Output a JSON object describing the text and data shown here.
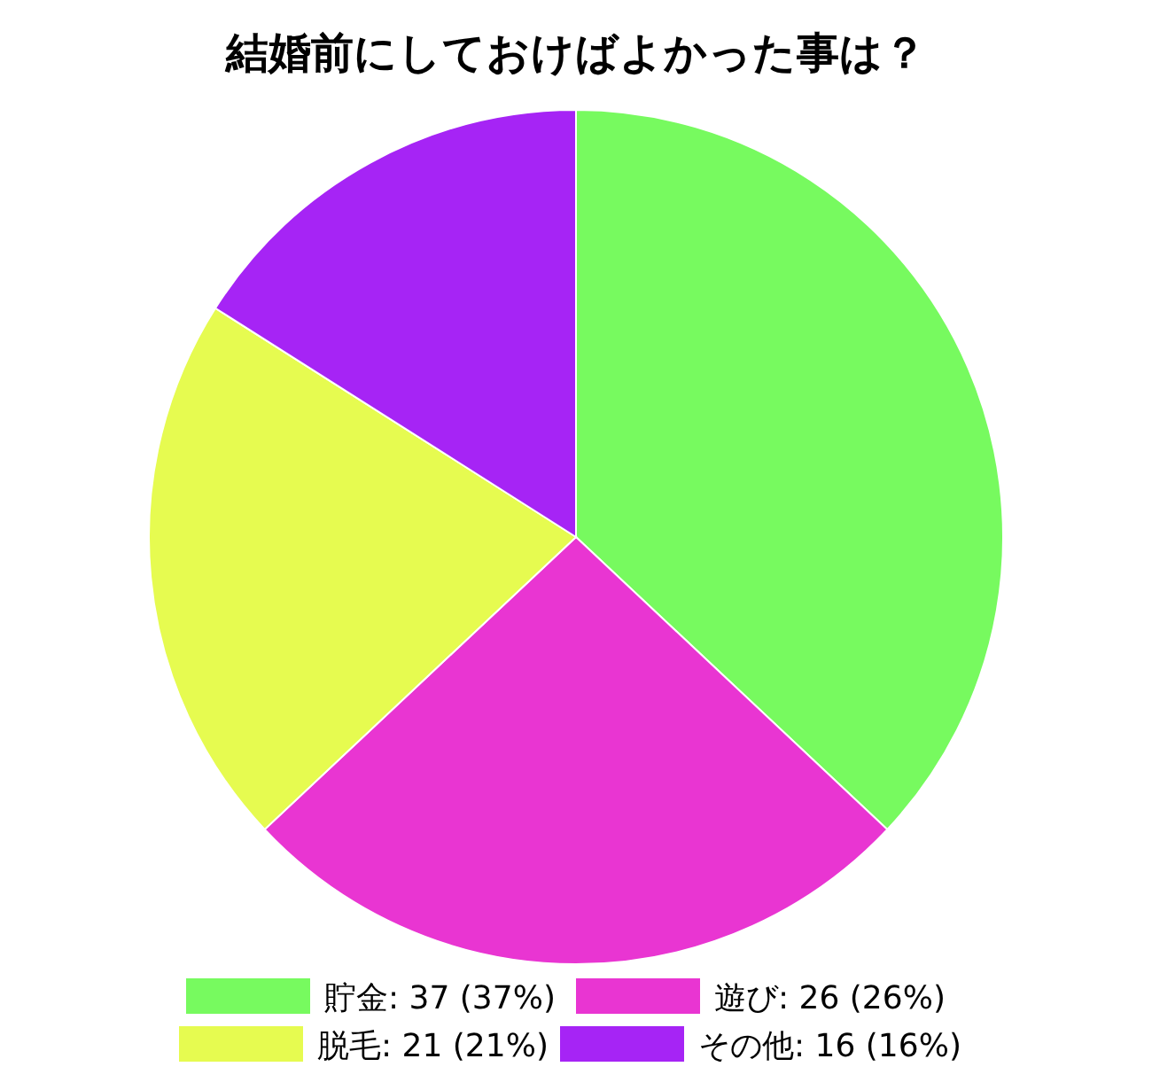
{
  "chart_data": {
    "type": "pie",
    "title": "結婚前にしておけばよかった事は？",
    "categories": [
      "貯金",
      "遊び",
      "脱毛",
      "その他"
    ],
    "values": [
      37,
      26,
      21,
      16
    ],
    "value_labels": [
      "37 (37%)",
      "26 (26%)",
      "21 (21%)",
      "16 (16%)"
    ],
    "colors": [
      "#77fa5f",
      "#e935d2",
      "#e6fb50",
      "#a624f5"
    ],
    "legend": "bottom"
  }
}
